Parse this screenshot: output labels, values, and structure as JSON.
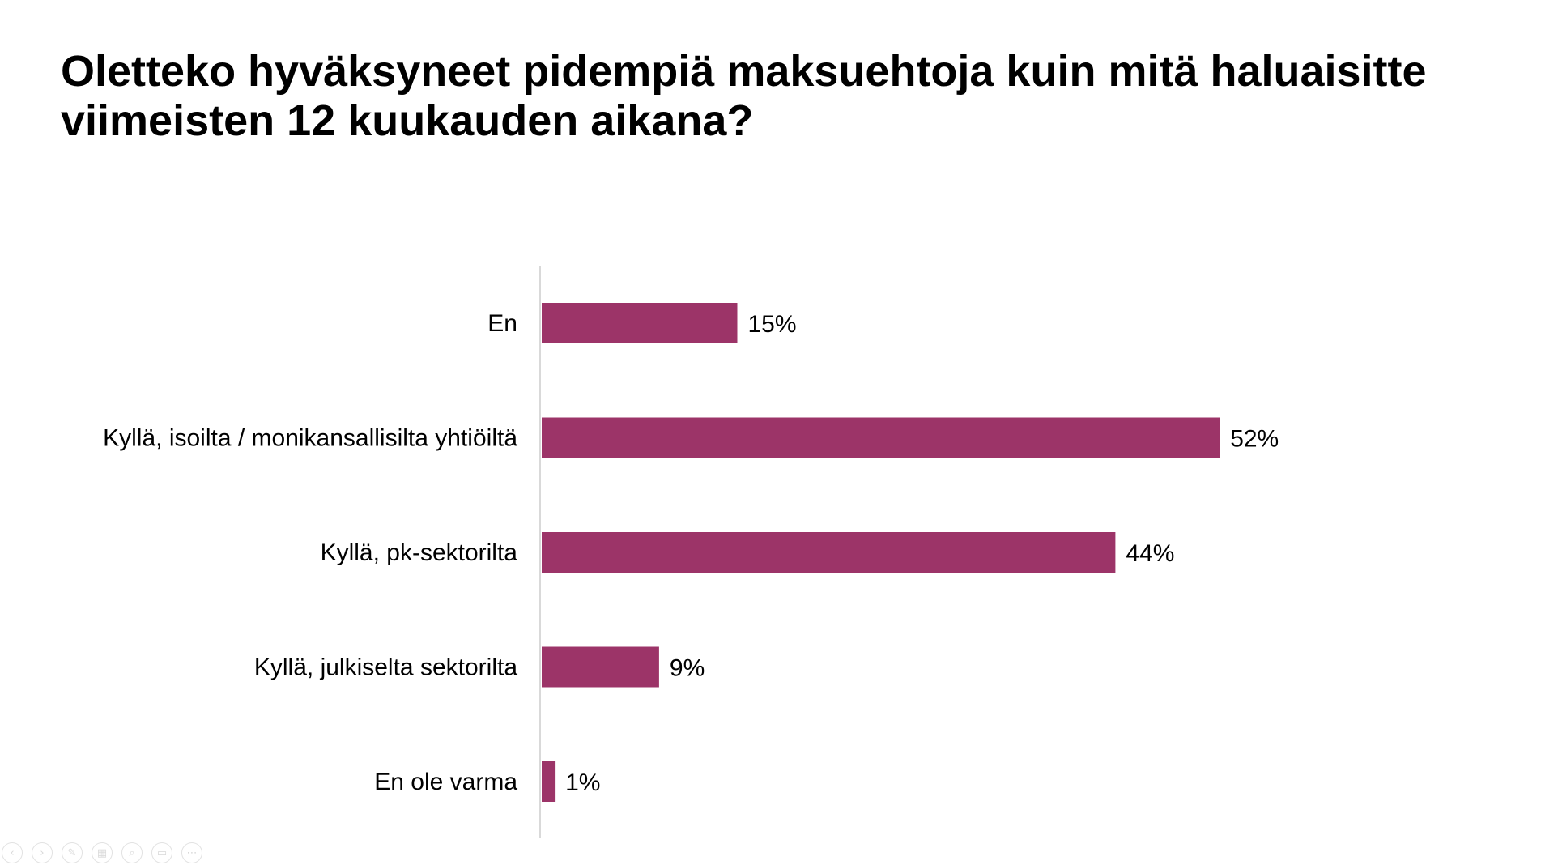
{
  "slide": {
    "title": "Oletteko hyväksyneet pidempiä maksuehtoja kuin mitä haluaisitte viimeisten 12 kuukauden aikana?"
  },
  "chart_data": {
    "type": "bar",
    "orientation": "horizontal",
    "categories": [
      "En",
      "Kyllä, isoilta / monikansallisilta yhtiöiltä",
      "Kyllä, pk-sektorilta",
      "Kyllä, julkiselta sektorilta",
      "En ole varma"
    ],
    "values": [
      15,
      52,
      44,
      9,
      1
    ],
    "value_labels": [
      "15%",
      "52%",
      "44%",
      "9%",
      "1%"
    ],
    "unit": "%",
    "xlim": [
      0,
      100
    ],
    "bar_color": "#9c3468",
    "axis_color": "#d9d9d9",
    "grid": false,
    "legend": "none"
  },
  "controls": [
    {
      "name": "previous-slide-icon",
      "glyph": "‹"
    },
    {
      "name": "next-slide-icon",
      "glyph": "›"
    },
    {
      "name": "pen-icon",
      "glyph": "✎"
    },
    {
      "name": "slides-grid-icon",
      "glyph": "▦"
    },
    {
      "name": "zoom-icon",
      "glyph": "⌕"
    },
    {
      "name": "subtitles-icon",
      "glyph": "▭"
    },
    {
      "name": "more-options-icon",
      "glyph": "⋯"
    }
  ]
}
